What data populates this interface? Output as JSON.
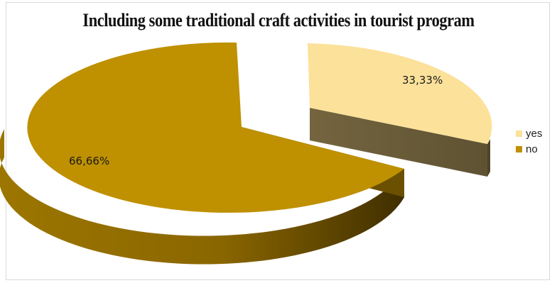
{
  "chart_data": {
    "type": "pie",
    "title": "Including some traditional craft activities in tourist program",
    "labels": [
      "yes",
      "no"
    ],
    "values": [
      33.33,
      66.66
    ],
    "data_labels": [
      "33,33%",
      "66,66%"
    ],
    "colors": [
      "#FCE19A",
      "#BF9000"
    ],
    "exploded": "yes",
    "three_d": true,
    "legend_position": "right"
  }
}
